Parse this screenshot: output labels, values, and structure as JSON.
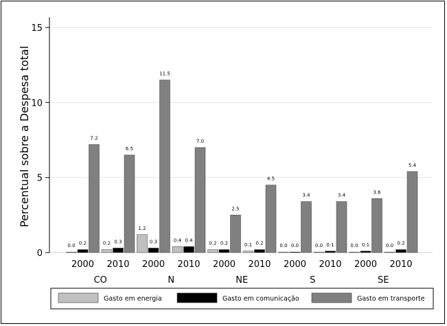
{
  "chart_data": {
    "type": "bar",
    "ylabel": "Percentual sobre a Despesa total",
    "ylim": [
      0,
      15
    ],
    "yticks": [
      0,
      5,
      10,
      15
    ],
    "grid": true,
    "legend_position": "bottom",
    "groups": [
      {
        "region": "CO",
        "years": [
          "2000",
          "2010"
        ]
      },
      {
        "region": "N",
        "years": [
          "2000",
          "2010"
        ]
      },
      {
        "region": "NE",
        "years": [
          "2000",
          "2010"
        ]
      },
      {
        "region": "S",
        "years": [
          "2000",
          "2010"
        ]
      },
      {
        "region": "SE",
        "years": [
          "2000",
          "2010"
        ]
      }
    ],
    "categories": [
      "CO 2000",
      "CO 2010",
      "N 2000",
      "N 2010",
      "NE 2000",
      "NE 2010",
      "S 2000",
      "S 2010",
      "SE 2000",
      "SE 2010"
    ],
    "series": [
      {
        "name": "Gasto em energia",
        "color": "#c0c0c0",
        "values": [
          0.0,
          0.2,
          1.2,
          0.4,
          0.2,
          0.1,
          0.0,
          0.0,
          0.0,
          0.0
        ],
        "labels": [
          "0.0",
          "0.2",
          "1.2",
          "0.4",
          "0.2",
          "0.1",
          "0.0",
          "0.0",
          "0.0",
          "0.0"
        ]
      },
      {
        "name": "Gasto em comunicação",
        "color": "#000000",
        "values": [
          0.2,
          0.3,
          0.3,
          0.4,
          0.2,
          0.2,
          0.0,
          0.1,
          0.1,
          0.2
        ],
        "labels": [
          "0.2",
          "0.3",
          "0.3",
          "0.4",
          "0.2",
          "0.2",
          "0.0",
          "0.1",
          "0.1",
          "0.2"
        ]
      },
      {
        "name": "Gasto em transporte",
        "color": "#808080",
        "values": [
          7.2,
          6.5,
          11.5,
          7.0,
          2.5,
          4.5,
          3.4,
          3.4,
          3.6,
          5.4
        ],
        "labels": [
          "7.2",
          "6.5",
          "11.5",
          "7.0",
          "2.5",
          "4.5",
          "3.4",
          "3.4",
          "3.6",
          "5.4"
        ]
      }
    ]
  }
}
